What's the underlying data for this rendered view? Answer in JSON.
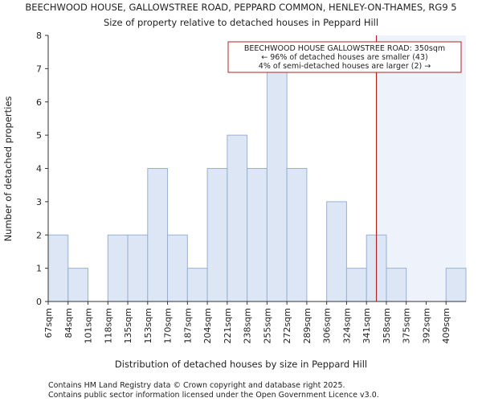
{
  "chart_data": {
    "type": "bar",
    "title": "BEECHWOOD HOUSE, GALLOWSTREE ROAD, PEPPARD COMMON, HENLEY-ON-THAMES, RG9 5",
    "subtitle": "Size of property relative to detached houses in Peppard Hill",
    "xlabel": "Distribution of detached houses by size in Peppard Hill",
    "ylabel": "Number of detached properties",
    "categories": [
      "67sqm",
      "84sqm",
      "101sqm",
      "118sqm",
      "135sqm",
      "153sqm",
      "170sqm",
      "187sqm",
      "204sqm",
      "221sqm",
      "238sqm",
      "255sqm",
      "272sqm",
      "289sqm",
      "306sqm",
      "324sqm",
      "341sqm",
      "358sqm",
      "375sqm",
      "392sqm",
      "409sqm"
    ],
    "values": [
      2,
      1,
      0,
      2,
      2,
      4,
      2,
      1,
      4,
      5,
      4,
      7,
      4,
      0,
      3,
      1,
      2,
      1,
      0,
      0,
      1
    ],
    "ylim": [
      0,
      8
    ],
    "yticks": [
      0,
      1,
      2,
      3,
      4,
      5,
      6,
      7,
      8
    ],
    "grid": false,
    "marker": {
      "x_index": 16.5,
      "color": "#b22222"
    },
    "annotation": {
      "line1": "BEECHWOOD HOUSE GALLOWSTREE ROAD: 350sqm",
      "line2": "← 96% of detached houses are smaller (43)",
      "line3": "4% of semi-detached houses are larger (2) →"
    },
    "colors": {
      "bar_fill": "#dce6f4",
      "bar_stroke": "#9ab0d4",
      "highlight_bg": "#eef3fb",
      "marker": "#b22222"
    }
  },
  "footer": {
    "line1": "Contains HM Land Registry data © Crown copyright and database right 2025.",
    "line2": "Contains public sector information licensed under the Open Government Licence v3.0."
  }
}
